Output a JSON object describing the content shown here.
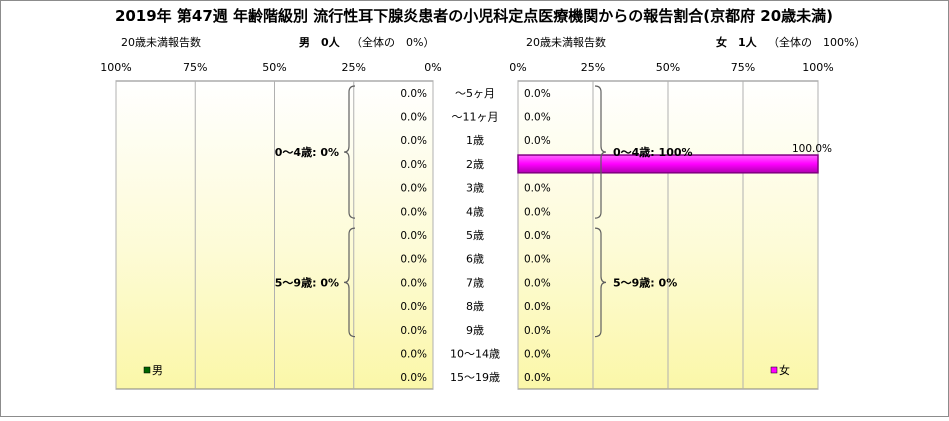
{
  "title": "2019年 第47週 年齢階級別 流行性耳下腺炎患者の小児科定点医療機関からの報告割合(京都府 20歳未満)",
  "colors": {
    "male": "#006400",
    "female": "#ff00ff",
    "female_edge": "#800080"
  },
  "chart_data": {
    "type": "bar",
    "orientation": "horizontal",
    "categories": [
      "〜5ヶ月",
      "〜11ヶ月",
      "1歳",
      "2歳",
      "3歳",
      "4歳",
      "5歳",
      "6歳",
      "7歳",
      "8歳",
      "9歳",
      "10〜14歳",
      "15〜19歳"
    ],
    "xlim": [
      0,
      100
    ],
    "ticks_left": [
      "100%",
      "75%",
      "50%",
      "25%",
      "0%"
    ],
    "ticks_right": [
      "0%",
      "25%",
      "50%",
      "75%",
      "100%"
    ],
    "grid": true,
    "male": {
      "header_label": "20歳未満報告数",
      "header_count": "男　0人",
      "header_share": "（全体の　0%）",
      "legend": "男",
      "values": [
        0,
        0,
        0,
        0,
        0,
        0,
        0,
        0,
        0,
        0,
        0,
        0,
        0
      ],
      "value_labels": [
        "0.0%",
        "0.0%",
        "0.0%",
        "0.0%",
        "0.0%",
        "0.0%",
        "0.0%",
        "0.0%",
        "0.0%",
        "0.0%",
        "0.0%",
        "0.0%",
        "0.0%"
      ],
      "groups": [
        {
          "label": "0〜4歳: 0%",
          "from": 0,
          "to": 5
        },
        {
          "label": "5〜9歳: 0%",
          "from": 6,
          "to": 10
        }
      ]
    },
    "female": {
      "header_label": "20歳未満報告数",
      "header_count": "女　1人",
      "header_share": "（全体の　100%）",
      "legend": "女",
      "values": [
        0,
        0,
        0,
        100,
        0,
        0,
        0,
        0,
        0,
        0,
        0,
        0,
        0
      ],
      "value_labels": [
        "0.0%",
        "0.0%",
        "0.0%",
        "100.0%",
        "0.0%",
        "0.0%",
        "0.0%",
        "0.0%",
        "0.0%",
        "0.0%",
        "0.0%",
        "0.0%",
        "0.0%"
      ],
      "groups": [
        {
          "label": "0〜4歳: 100%",
          "from": 0,
          "to": 5
        },
        {
          "label": "5〜9歳: 0%",
          "from": 6,
          "to": 10
        }
      ]
    }
  }
}
